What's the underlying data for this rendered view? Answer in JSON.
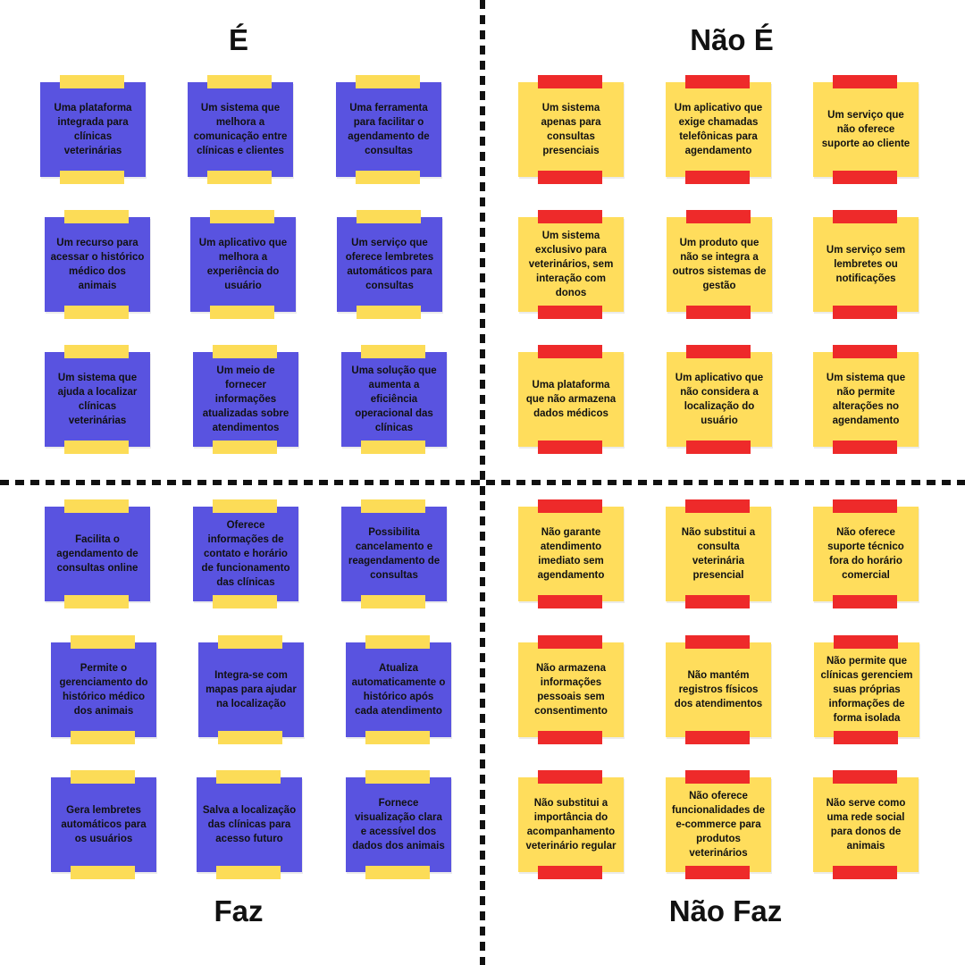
{
  "quadrants": {
    "is": {
      "title": "É",
      "notes": [
        "Uma plataforma integrada para clínicas veterinárias",
        "Um sistema que melhora a comunicação entre clínicas e clientes",
        "Uma ferramenta para facilitar o agendamento de consultas",
        "Um recurso para acessar o histórico médico dos animais",
        "Um aplicativo que melhora a experiência do usuário",
        "Um serviço que oferece lembretes automáticos para consultas",
        "Um sistema que ajuda a localizar clínicas veterinárias",
        "Um meio de fornecer informações atualizadas sobre atendimentos",
        "Uma solução que aumenta a eficiência operacional das clínicas"
      ]
    },
    "is_not": {
      "title": "Não É",
      "notes": [
        "Um sistema apenas para consultas presenciais",
        "Um aplicativo que exige chamadas telefônicas para agendamento",
        "Um serviço que não oferece suporte ao cliente",
        "Um sistema exclusivo para veterinários, sem interação com donos",
        "Um produto que não se integra a outros sistemas de gestão",
        "Um serviço sem lembretes ou notificações",
        "Uma plataforma que não armazena dados médicos",
        "Um aplicativo que não considera a localização do usuário",
        "Um sistema que não permite alterações no agendamento"
      ]
    },
    "does": {
      "title": "Faz",
      "notes": [
        "Facilita o agendamento de consultas online",
        "Oferece informações de contato e horário de funcionamento das clínicas",
        "Possibilita cancelamento e reagendamento de consultas",
        "Permite o gerenciamento do histórico médico dos animais",
        "Integra-se com mapas para ajudar na localização",
        "Atualiza automaticamente o histórico após cada atendimento",
        "Gera lembretes automáticos para os usuários",
        "Salva a localização das clínicas para acesso futuro",
        "Fornece visualização clara e acessível dos dados dos animais"
      ]
    },
    "does_not": {
      "title": "Não Faz",
      "notes": [
        "Não garante atendimento imediato sem agendamento",
        "Não substitui a consulta veterinária presencial",
        "Não oferece suporte técnico fora do horário comercial",
        "Não armazena informações pessoais sem consentimento",
        "Não mantém registros físicos dos atendimentos",
        "Não permite que clínicas gerenciem suas próprias informações de forma isolada",
        "Não substitui a importância do acompanhamento veterinário regular",
        "Não oferece funcionalidades de e-commerce para produtos veterinários",
        "Não serve como uma rede social para donos de animais"
      ]
    }
  },
  "colors": {
    "blue_note": "#5953e0",
    "yellow_note": "#ffdd5c",
    "yellow_tape": "#fcdc57",
    "red_tape": "#ee2a2a"
  }
}
